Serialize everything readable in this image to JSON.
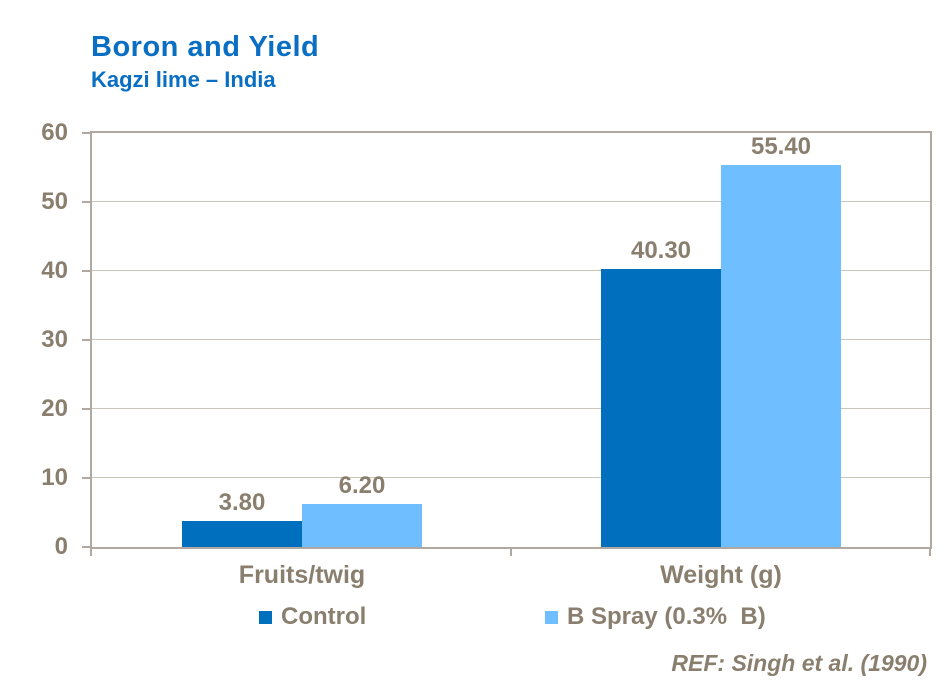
{
  "header": {
    "title": "Boron and Yield",
    "subtitle": "Kagzi lime – India"
  },
  "footer": {
    "reference": "REF: Singh et al. (1990)"
  },
  "chart_data": {
    "type": "bar",
    "title": "Boron and Yield",
    "subtitle": "Kagzi lime – India",
    "categories": [
      "Fruits/twig",
      "Weight (g)"
    ],
    "series": [
      {
        "name": "Control",
        "color": "#0070BE",
        "values": [
          3.8,
          40.3
        ],
        "labels": [
          "3.80",
          "40.30"
        ]
      },
      {
        "name": "B Spray (0.3%  B)",
        "color": "#6FBEFF",
        "values": [
          6.2,
          55.4
        ],
        "labels": [
          "6.20",
          "55.40"
        ]
      }
    ],
    "ylim": [
      0,
      60
    ],
    "yticks": [
      0,
      10,
      20,
      30,
      40,
      50,
      60
    ],
    "grid": "horizontal",
    "legend_position": "bottom",
    "title_color": "#0A6FC3",
    "axis_text_color": "#8A7F6E",
    "axis_line_color": "#B1A9A1",
    "gridline_color": "#CBC4BA"
  }
}
